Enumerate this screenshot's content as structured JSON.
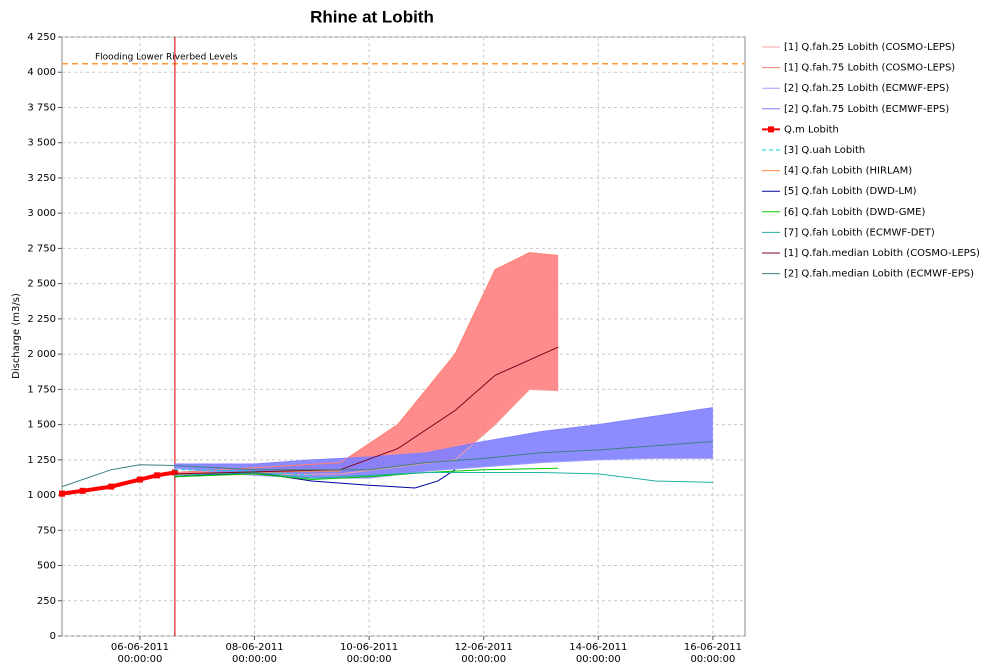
{
  "chart_data": {
    "type": "line",
    "title": "Rhine at Lobith",
    "y_label": "Discharge (m3/s)",
    "xlim": [
      4.64,
      16.56
    ],
    "ylim": [
      0,
      4250
    ],
    "grid": true,
    "xticks": [
      {
        "value": 6,
        "label": "06-06-2011\n00:00:00"
      },
      {
        "value": 8,
        "label": "08-06-2011\n00:00:00"
      },
      {
        "value": 10,
        "label": "10-06-2011\n00:00:00"
      },
      {
        "value": 12,
        "label": "12-06-2011\n00:00:00"
      },
      {
        "value": 14,
        "label": "14-06-2011\n00:00:00"
      },
      {
        "value": 16,
        "label": "16-06-2011\n00:00:00"
      }
    ],
    "yticks": [
      0,
      250,
      500,
      750,
      {
        "value": 1000,
        "label": "1 000"
      },
      {
        "value": 1250,
        "label": "1 250"
      },
      {
        "value": 1500,
        "label": "1 500"
      },
      {
        "value": 1750,
        "label": "1 750"
      },
      {
        "value": 2000,
        "label": "2 000"
      },
      {
        "value": 2250,
        "label": "2 250"
      },
      {
        "value": 2500,
        "label": "2 500"
      },
      {
        "value": 2750,
        "label": "2 750"
      },
      {
        "value": 3000,
        "label": "3 000"
      },
      {
        "value": 3250,
        "label": "3 250"
      },
      {
        "value": 3500,
        "label": "3 500"
      },
      {
        "value": 3750,
        "label": "3 750"
      },
      {
        "value": 4000,
        "label": "4 000"
      },
      {
        "value": 4250,
        "label": "4 250"
      }
    ],
    "hline": {
      "value": 4060,
      "label": "Flooding Lower Riverbed Levels",
      "color": "#ff9933"
    },
    "vline": {
      "value": 6.61,
      "color": "#e02020"
    },
    "series": [
      {
        "name": "[1] Q.fah.25 Lobith (COSMO-LEPS)",
        "color": "#f4a0a0",
        "fill": "#ff7f7f",
        "x": [
          6.6,
          9.5,
          10.5,
          11.5,
          12.2,
          12.8,
          13.3
        ],
        "values": [
          1140,
          1150,
          1200,
          1250,
          1500,
          1750,
          1740
        ]
      },
      {
        "name": "[1] Q.fah.75 Lobith (COSMO-LEPS)",
        "color": "#ff7f6f",
        "fill": "#ff7f7f",
        "x": [
          6.6,
          9.5,
          10.5,
          11.5,
          12.2,
          12.8,
          13.3
        ],
        "values": [
          1160,
          1230,
          1500,
          2000,
          2600,
          2720,
          2700
        ]
      },
      {
        "name": "[2] Q.fah.25 Lobith (ECMWF-EPS)",
        "color": "#a0a0ff",
        "fill": "#7f7fff",
        "x": [
          6.6,
          8,
          9,
          10,
          11,
          12,
          13,
          14,
          15,
          16
        ],
        "values": [
          1190,
          1140,
          1120,
          1120,
          1170,
          1200,
          1230,
          1250,
          1260,
          1260
        ]
      },
      {
        "name": "[2] Q.fah.75 Lobith (ECMWF-EPS)",
        "color": "#8080ff",
        "fill": "#7f7fff",
        "x": [
          6.6,
          8,
          9,
          10,
          11,
          12,
          13,
          14,
          15,
          16
        ],
        "values": [
          1220,
          1220,
          1250,
          1270,
          1300,
          1380,
          1450,
          1500,
          1560,
          1620
        ]
      },
      {
        "name": "Q.m Lobith",
        "color": "#ff0000",
        "marker": "square",
        "width": 4,
        "x": [
          4.64,
          5.0,
          5.5,
          6.0,
          6.3,
          6.61
        ],
        "values": [
          1010,
          1030,
          1060,
          1110,
          1140,
          1160
        ]
      },
      {
        "name": "[3] Q.uah Lobith",
        "color": "#00d8d8",
        "dash": true,
        "x": [
          6.6,
          8,
          9
        ],
        "values": [
          1180,
          1170,
          1140
        ]
      },
      {
        "name": "[4] Q.fah Lobith (HIRLAM)",
        "color": "#ff8c40",
        "x": [
          6.6,
          8,
          9,
          9.5
        ],
        "values": [
          1150,
          1160,
          1170,
          1170
        ]
      },
      {
        "name": "[5] Q.fah Lobith (DWD-LM)",
        "color": "#0000a0",
        "x": [
          6.6,
          8,
          9,
          10,
          10.8,
          11.2,
          11.5
        ],
        "values": [
          1130,
          1160,
          1100,
          1070,
          1050,
          1100,
          1180
        ]
      },
      {
        "name": "[6] Q.fah Lobith (DWD-GME)",
        "color": "#00c800",
        "x": [
          6.6,
          8,
          9,
          10,
          11,
          12,
          13.3
        ],
        "values": [
          1130,
          1150,
          1110,
          1130,
          1160,
          1180,
          1190
        ]
      },
      {
        "name": "[7] Q.fah Lobith (ECMWF-DET)",
        "color": "#20b0a0",
        "x": [
          6.6,
          8,
          9,
          10,
          11,
          12,
          13,
          14,
          15,
          16
        ],
        "values": [
          1140,
          1160,
          1120,
          1140,
          1160,
          1160,
          1160,
          1150,
          1100,
          1090
        ]
      },
      {
        "name": "[1] Q.fah.median Lobith (COSMO-LEPS)",
        "color": "#800020",
        "x": [
          6.6,
          9.5,
          10.5,
          11.5,
          12.2,
          13.3
        ],
        "values": [
          1150,
          1180,
          1330,
          1600,
          1850,
          2050
        ]
      },
      {
        "name": "[2] Q.fah.median Lobith (ECMWF-EPS)",
        "color": "#408080",
        "x": [
          4.64,
          5.5,
          6.0,
          6.6,
          8,
          9,
          10,
          11,
          12,
          13,
          14,
          15,
          16
        ],
        "values": [
          1060,
          1180,
          1215,
          1210,
          1180,
          1180,
          1180,
          1230,
          1260,
          1300,
          1320,
          1350,
          1380
        ]
      }
    ]
  }
}
